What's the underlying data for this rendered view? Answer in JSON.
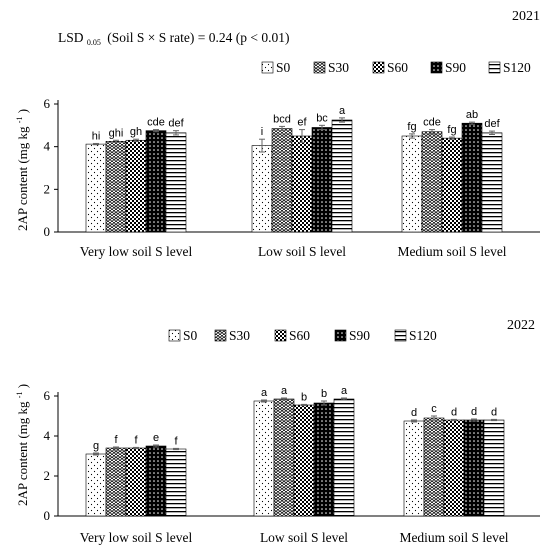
{
  "chart_data": [
    {
      "type": "bar",
      "year_label": "2021",
      "annotation": "LSD 0.05 (Soil S × S rate) = 0.24 (p < 0.01)",
      "annotation_parts": {
        "prefix": "LSD",
        "sub": "0.05",
        "rest": "(Soil S × S rate) = 0.24 (p < 0.01)"
      },
      "ylabel": "2AP content (mg kg-1)",
      "ylabel_parts": {
        "main": "2AP content (mg kg",
        "sup": "-1",
        "tail": ")"
      },
      "ylim": [
        0,
        6
      ],
      "yticks": [
        "0",
        "2",
        "4",
        "6"
      ],
      "categories": [
        "Very low soil S level",
        "Low soil S level",
        "Medium soil S level"
      ],
      "series": [
        {
          "name": "S0",
          "values": [
            4.12,
            4.05,
            4.5
          ],
          "errors": [
            0.03,
            0.3,
            0.1
          ],
          "letters": [
            "hi",
            "i",
            "fg"
          ]
        },
        {
          "name": "S30",
          "values": [
            4.25,
            4.85,
            4.7
          ],
          "errors": [
            0.05,
            0.1,
            0.1
          ],
          "letters": [
            "ghi",
            "bcd",
            "cde"
          ]
        },
        {
          "name": "S60",
          "values": [
            4.3,
            4.5,
            4.4
          ],
          "errors": [
            0.05,
            0.3,
            0.05
          ],
          "letters": [
            "gh",
            "ef",
            "fg"
          ]
        },
        {
          "name": "S90",
          "values": [
            4.75,
            4.9,
            5.1
          ],
          "errors": [
            0.05,
            0.1,
            0.05
          ],
          "letters": [
            "cde",
            "bc",
            "ab"
          ]
        },
        {
          "name": "S120",
          "values": [
            4.65,
            5.25,
            4.65
          ],
          "errors": [
            0.1,
            0.1,
            0.08
          ],
          "letters": [
            "def",
            "a",
            "def"
          ]
        }
      ]
    },
    {
      "type": "bar",
      "year_label": "2022",
      "ylabel": "2AP content (mg kg-1)",
      "ylabel_parts": {
        "main": "2AP content (mg kg",
        "sup": "-1",
        "tail": ")"
      },
      "ylim": [
        0,
        6
      ],
      "yticks": [
        "0",
        "2",
        "4",
        "6"
      ],
      "categories": [
        "Very low soil S level",
        "Low soil S level",
        "Medium soil S level"
      ],
      "series": [
        {
          "name": "S0",
          "values": [
            3.1,
            5.75,
            4.75
          ],
          "errors": [
            0.05,
            0.05,
            0.05
          ],
          "letters": [
            "g",
            "a",
            "d"
          ]
        },
        {
          "name": "S30",
          "values": [
            3.4,
            5.85,
            4.9
          ],
          "errors": [
            0.05,
            0.05,
            0.1
          ],
          "letters": [
            "f",
            "a",
            "c"
          ]
        },
        {
          "name": "S60",
          "values": [
            3.4,
            5.55,
            4.8
          ],
          "errors": [
            0.03,
            0.03,
            0.03
          ],
          "letters": [
            "f",
            "b",
            "d"
          ]
        },
        {
          "name": "S90",
          "values": [
            3.5,
            5.65,
            4.8
          ],
          "errors": [
            0.05,
            0.1,
            0.05
          ],
          "letters": [
            "e",
            "b",
            "d"
          ]
        },
        {
          "name": "S120",
          "values": [
            3.35,
            5.85,
            4.8
          ],
          "errors": [
            0.03,
            0.05,
            0.03
          ],
          "letters": [
            "f",
            "a",
            "d"
          ]
        }
      ]
    }
  ]
}
